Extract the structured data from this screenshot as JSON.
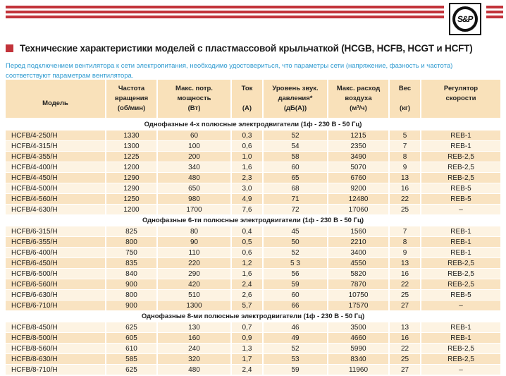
{
  "brand": {
    "logo_text": "S&P"
  },
  "title": "Технические характеристики моделей с пластмассовой крыльчаткой (HCGB, HCFB, HCGT и HCFT)",
  "notice": "Перед подключением вентилятора к сети электропитания, необходимо удостовериться, что параметры сети (напряжение, фазность и частота) соответствуют параметрам вентилятора.",
  "colors": {
    "accent_red": "#c2333a",
    "notice_blue": "#2e9ad0",
    "header_peach": "#f9e1ba",
    "row_peach": "#f9e3c1",
    "row_cream": "#fdf3e2"
  },
  "table": {
    "columns": [
      {
        "lines": [
          "",
          "Модель"
        ]
      },
      {
        "lines": [
          "Частота",
          "вращения",
          "(об/мин)"
        ]
      },
      {
        "lines": [
          "Макс. потр.",
          "мощность",
          "(Вт)"
        ]
      },
      {
        "lines": [
          "Ток",
          "",
          "(А)"
        ]
      },
      {
        "lines": [
          "Уровень звук.",
          "давления*",
          "(дБ(А))"
        ]
      },
      {
        "lines": [
          "Макс. расход",
          "воздуха",
          "(м³/ч)"
        ]
      },
      {
        "lines": [
          "Вес",
          "",
          "(кг)"
        ]
      },
      {
        "lines": [
          "Регулятор",
          "скорости",
          ""
        ]
      }
    ],
    "sections": [
      {
        "header": "Однофазные 4-х полюсные электродвигатели (1ф - 230 В - 50 Гц)",
        "rows": [
          {
            "shade": "dark",
            "cells": [
              "HCFB/4-250/H",
              "1330",
              "60",
              "0,3",
              "52",
              "1215",
              "5",
              "REB-1"
            ]
          },
          {
            "shade": "light",
            "cells": [
              "HCFB/4-315/H",
              "1300",
              "100",
              "0,6",
              "54",
              "2350",
              "7",
              "REB-1"
            ]
          },
          {
            "shade": "dark",
            "cells": [
              "HCFB/4-355/H",
              "1225",
              "200",
              "1,0",
              "58",
              "3490",
              "8",
              "REB-2,5"
            ]
          },
          {
            "shade": "light",
            "cells": [
              "HCFB/4-400/H",
              "1200",
              "340",
              "1,6",
              "60",
              "5070",
              "9",
              "REB-2,5"
            ]
          },
          {
            "shade": "dark",
            "cells": [
              "HCFB/4-450/H",
              "1290",
              "480",
              "2,3",
              "65",
              "6760",
              "13",
              "REB-2,5"
            ]
          },
          {
            "shade": "light",
            "cells": [
              "HCFB/4-500/H",
              "1290",
              "650",
              "3,0",
              "68",
              "9200",
              "16",
              "REB-5"
            ]
          },
          {
            "shade": "dark",
            "cells": [
              "HCFB/4-560/H",
              "1250",
              "980",
              "4,9",
              "71",
              "12480",
              "22",
              "REB-5"
            ]
          },
          {
            "shade": "light",
            "cells": [
              "HCFB/4-630/H",
              "1200",
              "1700",
              "7,6",
              "72",
              "17060",
              "25",
              "–"
            ]
          }
        ]
      },
      {
        "header": "Однофазные 6-ти полюсные электродвигатели (1ф - 230 В - 50 Гц)",
        "rows": [
          {
            "shade": "light",
            "cells": [
              "HCFB/6-315/H",
              "825",
              "80",
              "0,4",
              "45",
              "1560",
              "7",
              "REB-1"
            ]
          },
          {
            "shade": "dark",
            "cells": [
              "HCFB/6-355/H",
              "800",
              "90",
              "0,5",
              "50",
              "2210",
              "8",
              "REB-1"
            ]
          },
          {
            "shade": "light",
            "cells": [
              "HCFB/6-400/H",
              "750",
              "110",
              "0,6",
              "52",
              "3400",
              "9",
              "REB-1"
            ]
          },
          {
            "shade": "dark",
            "cells": [
              "HCFB/6-450/H",
              "835",
              "220",
              "1,2",
              "5 3",
              "4550",
              "13",
              "REB-2,5"
            ]
          },
          {
            "shade": "light",
            "cells": [
              "HCFB/6-500/H",
              "840",
              "290",
              "1,6",
              "56",
              "5820",
              "16",
              "REB-2,5"
            ]
          },
          {
            "shade": "dark",
            "cells": [
              "HCFB/6-560/H",
              "900",
              "420",
              "2,4",
              "59",
              "7870",
              "22",
              "REB-2,5"
            ]
          },
          {
            "shade": "light",
            "cells": [
              "HCFB/6-630/H",
              "800",
              "510",
              "2,6",
              "60",
              "10750",
              "25",
              "REB-5"
            ]
          },
          {
            "shade": "dark",
            "cells": [
              "HCFB/6-710/H",
              "900",
              "1300",
              "5,7",
              "66",
              "17570",
              "27",
              "–"
            ]
          }
        ]
      },
      {
        "header": "Однофазные 8-ми полюсные электродвигатели (1ф - 230 В - 50 Гц)",
        "rows": [
          {
            "shade": "light",
            "cells": [
              "HCFB/8-450/H",
              "625",
              "130",
              "0,7",
              "46",
              "3500",
              "13",
              "REB-1"
            ]
          },
          {
            "shade": "dark",
            "cells": [
              "HCFB/8-500/H",
              "605",
              "160",
              "0,9",
              "49",
              "4660",
              "16",
              "REB-1"
            ]
          },
          {
            "shade": "light",
            "cells": [
              "HCFB/8-560/H",
              "610",
              "240",
              "1,3",
              "52",
              "5990",
              "22",
              "REB-2,5"
            ]
          },
          {
            "shade": "dark",
            "cells": [
              "HCFB/8-630/H",
              "585",
              "320",
              "1,7",
              "53",
              "8340",
              "25",
              "REB-2,5"
            ]
          },
          {
            "shade": "light",
            "cells": [
              "HCFB/8-710/H",
              "625",
              "480",
              "2,4",
              "59",
              "11960",
              "27",
              "–"
            ]
          }
        ]
      }
    ]
  }
}
